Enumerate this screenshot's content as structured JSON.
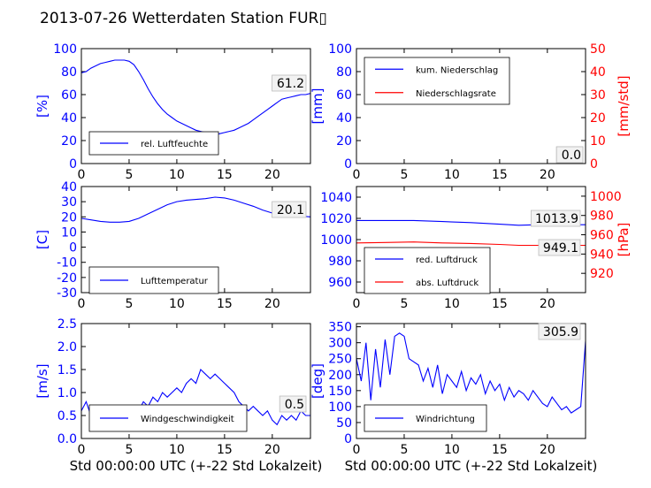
{
  "title": "2013-07-26 Wetterdaten Station FUR▯",
  "colors": {
    "blue": "#0000ff",
    "red": "#ff0000",
    "black": "#000000"
  },
  "chart_data": [
    {
      "type": "line",
      "ylabel": "[%]",
      "ylim": [
        0,
        100
      ],
      "yticks": [
        0,
        20,
        40,
        60,
        80,
        100
      ],
      "xlim": [
        0,
        24
      ],
      "xticks": [
        0,
        5,
        10,
        15,
        20
      ],
      "legend": [
        "rel. Luftfeuchte"
      ],
      "annotations": [
        "61.2"
      ],
      "series": [
        {
          "name": "rel. Luftfeuchte",
          "color": "#0000ff",
          "x": [
            0,
            0.5,
            1,
            1.5,
            2,
            2.5,
            3,
            3.5,
            4,
            4.5,
            5,
            5.5,
            6,
            6.5,
            7,
            7.5,
            8,
            8.5,
            9,
            9.5,
            10,
            10.5,
            11,
            11.5,
            12,
            12.5,
            13,
            13.5,
            14,
            14.5,
            15,
            15.5,
            16,
            16.5,
            17,
            17.5,
            18,
            18.5,
            19,
            19.5,
            20,
            20.5,
            21,
            21.5,
            22,
            22.5,
            23,
            23.5,
            24
          ],
          "y": [
            79,
            80,
            83,
            85,
            87,
            88,
            89,
            90,
            90,
            90,
            89,
            86,
            80,
            73,
            65,
            58,
            52,
            47,
            43,
            40,
            37,
            35,
            33,
            31,
            29,
            28,
            27,
            26,
            25,
            26,
            27,
            28,
            29,
            31,
            33,
            35,
            38,
            41,
            44,
            47,
            50,
            53,
            56,
            57,
            58,
            59,
            60,
            60,
            61
          ]
        }
      ]
    },
    {
      "type": "line",
      "ylabel": "[mm]",
      "ylabel2": "[mm/std]",
      "ylim": [
        0,
        100
      ],
      "yticks": [
        0,
        20,
        40,
        60,
        80,
        100
      ],
      "ylim2": [
        0,
        50
      ],
      "yticks2": [
        0,
        10,
        20,
        30,
        40,
        50
      ],
      "xlim": [
        0,
        24
      ],
      "xticks": [
        0,
        5,
        10,
        15,
        20
      ],
      "legend": [
        "kum. Niederschlag",
        "Niederschlagsrate"
      ],
      "annotations": [
        "0.0",
        "0.0"
      ],
      "series": [
        {
          "name": "kum. Niederschlag",
          "color": "#0000ff",
          "x": [
            0,
            24
          ],
          "y": [
            0,
            0
          ]
        },
        {
          "name": "Niederschlagsrate",
          "color": "#ff0000",
          "x": [
            0,
            24
          ],
          "y": [
            0,
            0
          ]
        }
      ]
    },
    {
      "type": "line",
      "ylabel": "[C]",
      "ylim": [
        -30,
        40
      ],
      "yticks": [
        -30,
        -20,
        -10,
        0,
        10,
        20,
        30,
        40
      ],
      "xlim": [
        0,
        24
      ],
      "xticks": [
        0,
        5,
        10,
        15,
        20
      ],
      "legend": [
        "Lufttemperatur"
      ],
      "annotations": [
        "20.1"
      ],
      "series": [
        {
          "name": "Lufttemperatur",
          "color": "#0000ff",
          "x": [
            0,
            1,
            2,
            3,
            4,
            5,
            6,
            7,
            8,
            9,
            10,
            11,
            12,
            13,
            14,
            15,
            16,
            17,
            18,
            19,
            20,
            21,
            22,
            23,
            24
          ],
          "y": [
            19,
            18,
            17,
            16.5,
            16.5,
            17,
            19,
            22,
            25,
            28,
            30,
            31,
            31.5,
            32,
            33,
            32.5,
            31,
            29,
            27,
            24.5,
            22.5,
            21.5,
            21,
            20.5,
            20
          ]
        }
      ]
    },
    {
      "type": "line",
      "ylabel2": "[hPa]",
      "ylim": [
        950,
        1050
      ],
      "yticks": [
        960,
        980,
        1000,
        1020,
        1040
      ],
      "ylim2": [
        900,
        1010
      ],
      "yticks2": [
        920,
        940,
        960,
        980,
        1000
      ],
      "xlim": [
        0,
        24
      ],
      "xticks": [
        0,
        5,
        10,
        15,
        20
      ],
      "legend": [
        "red. Luftdruck",
        "abs. Luftdruck"
      ],
      "annotations": [
        "1013.9",
        "949.1"
      ],
      "series": [
        {
          "name": "red. Luftdruck",
          "color": "#0000ff",
          "x": [
            0,
            3,
            6,
            9,
            12,
            15,
            17,
            19,
            21,
            24
          ],
          "y": [
            1018,
            1018,
            1018,
            1017,
            1016,
            1014.5,
            1013.5,
            1014,
            1014,
            1014
          ]
        },
        {
          "name": "abs. Luftdruck",
          "color": "#ff0000",
          "x": [
            0,
            3,
            6,
            9,
            12,
            15,
            17,
            19,
            21,
            24
          ],
          "y": [
            951.5,
            952,
            952.5,
            951.5,
            951,
            950,
            949,
            949,
            949,
            949
          ]
        }
      ]
    },
    {
      "type": "line",
      "ylabel": "[m/s]",
      "xlabel": "Std 00:00:00 UTC (+-22 Std Lokalzeit)",
      "ylim": [
        0,
        2.5
      ],
      "yticks": [
        "0.0",
        "0.5",
        "1.0",
        "1.5",
        "2.0",
        "2.5"
      ],
      "xlim": [
        0,
        24
      ],
      "xticks": [
        0,
        5,
        10,
        15,
        20
      ],
      "legend": [
        "Windgeschwindigkeit"
      ],
      "annotations": [
        "0.5"
      ],
      "series": [
        {
          "name": "Windgeschwindigkeit",
          "color": "#0000ff",
          "x": [
            0,
            0.5,
            1,
            1.5,
            2,
            2.5,
            3,
            3.5,
            4,
            4.5,
            5,
            5.5,
            6,
            6.5,
            7,
            7.5,
            8,
            8.5,
            9,
            9.5,
            10,
            10.5,
            11,
            11.5,
            12,
            12.5,
            13,
            13.5,
            14,
            14.5,
            15,
            15.5,
            16,
            16.5,
            17,
            17.5,
            18,
            18.5,
            19,
            19.5,
            20,
            20.5,
            21,
            21.5,
            22,
            22.5,
            23,
            23.5,
            24
          ],
          "y": [
            0.6,
            0.8,
            0.5,
            0.3,
            0.2,
            0.4,
            0.3,
            0.5,
            0.4,
            0.6,
            0.5,
            0.7,
            0.6,
            0.8,
            0.7,
            0.9,
            0.8,
            1.0,
            0.9,
            1.0,
            1.1,
            1.0,
            1.2,
            1.3,
            1.2,
            1.5,
            1.4,
            1.3,
            1.4,
            1.3,
            1.2,
            1.1,
            1.0,
            0.8,
            0.7,
            0.6,
            0.7,
            0.6,
            0.5,
            0.6,
            0.4,
            0.3,
            0.5,
            0.4,
            0.5,
            0.4,
            0.6,
            0.5,
            0.5
          ]
        }
      ]
    },
    {
      "type": "line",
      "ylabel": "[deg]",
      "xlabel": "Std 00:00:00 UTC (+-22 Std Lokalzeit)",
      "ylim": [
        0,
        360
      ],
      "yticks": [
        0,
        50,
        100,
        150,
        200,
        250,
        300,
        350
      ],
      "xlim": [
        0,
        24
      ],
      "xticks": [
        0,
        5,
        10,
        15,
        20
      ],
      "legend": [
        "Windrichtung"
      ],
      "annotations": [
        "305.9"
      ],
      "series": [
        {
          "name": "Windrichtung",
          "color": "#0000ff",
          "x": [
            0,
            0.5,
            1,
            1.5,
            2,
            2.5,
            3,
            3.5,
            4,
            4.5,
            5,
            5.5,
            6,
            6.5,
            7,
            7.5,
            8,
            8.5,
            9,
            9.5,
            10,
            10.5,
            11,
            11.5,
            12,
            12.5,
            13,
            13.5,
            14,
            14.5,
            15,
            15.5,
            16,
            16.5,
            17,
            17.5,
            18,
            18.5,
            19,
            19.5,
            20,
            20.5,
            21,
            21.5,
            22,
            22.5,
            23,
            23.5,
            24
          ],
          "y": [
            250,
            180,
            300,
            120,
            280,
            160,
            310,
            200,
            320,
            330,
            320,
            250,
            240,
            230,
            180,
            220,
            160,
            230,
            140,
            200,
            180,
            160,
            210,
            150,
            190,
            170,
            200,
            140,
            180,
            150,
            170,
            120,
            160,
            130,
            150,
            140,
            120,
            150,
            130,
            110,
            100,
            130,
            110,
            90,
            100,
            80,
            90,
            100,
            305
          ]
        }
      ]
    }
  ]
}
